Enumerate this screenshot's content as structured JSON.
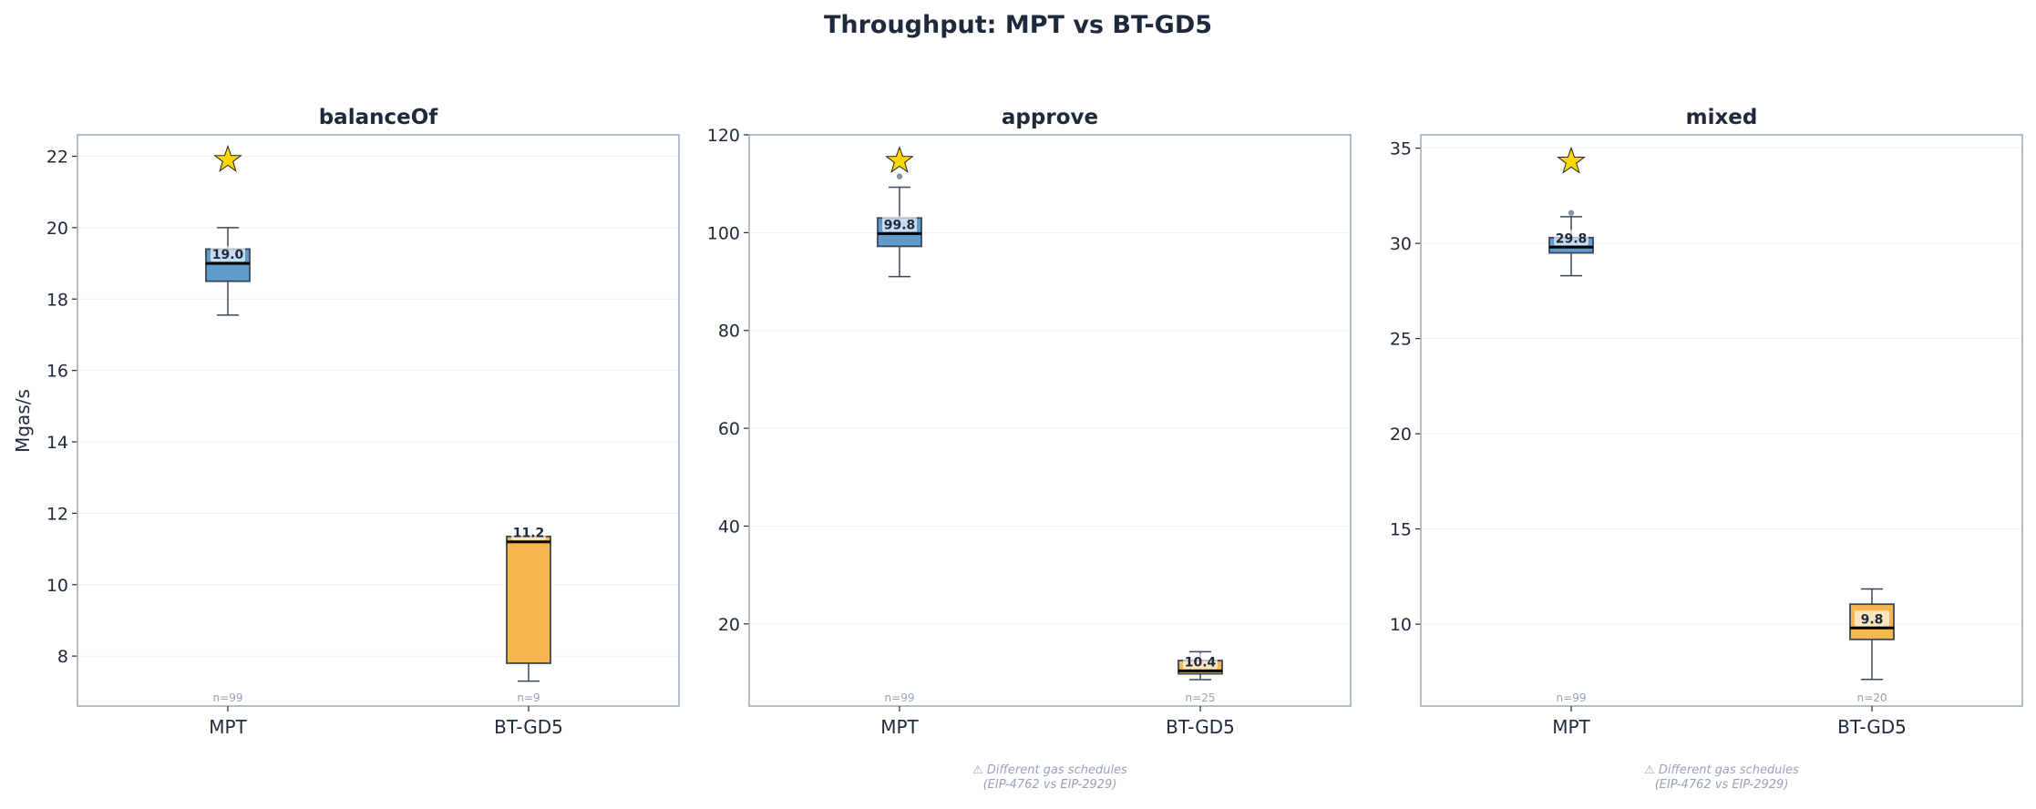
{
  "chart_data": {
    "type": "box",
    "title": "Throughput: MPT vs BT-GD5",
    "ylabel": "Mgas/s",
    "grid": "y",
    "colors": {
      "MPT": "#5f9ccb",
      "BT-GD5": "#f6b84e",
      "edge": "#3b4656",
      "star": "#ffd700",
      "text": "#1e293b",
      "spine": "#a0aec0",
      "muted": "#94a3b8",
      "outlier": "#8a94a6"
    },
    "marker_icon": "star-icon",
    "panels": [
      {
        "title": "balanceOf",
        "ylim": [
          6.6,
          22.6
        ],
        "yticks": [
          8,
          10,
          12,
          14,
          16,
          18,
          20,
          22
        ],
        "categories": [
          "MPT",
          "BT-GD5"
        ],
        "boxes": [
          {
            "whislo": 17.55,
            "q1": 18.5,
            "med": 19.0,
            "q3": 19.4,
            "whishi": 20.0,
            "median_label": "19.0",
            "n_label": "n=99",
            "outliers": [],
            "star": 21.9
          },
          {
            "whislo": 7.3,
            "q1": 7.8,
            "med": 11.2,
            "q3": 11.35,
            "whishi": 11.35,
            "median_label": "11.2",
            "n_label": "n=9",
            "outliers": []
          }
        ],
        "footnote": []
      },
      {
        "title": "approve",
        "ylim": [
          3.2,
          120
        ],
        "yticks": [
          20,
          40,
          60,
          80,
          100,
          120
        ],
        "categories": [
          "MPT",
          "BT-GD5"
        ],
        "boxes": [
          {
            "whislo": 91.0,
            "q1": 97.2,
            "med": 99.8,
            "q3": 103.0,
            "whishi": 109.3,
            "median_label": "99.8",
            "n_label": "n=99",
            "outliers": [
              111.5
            ],
            "star": 114.7
          },
          {
            "whislo": 8.6,
            "q1": 9.8,
            "med": 10.4,
            "q3": 12.5,
            "whishi": 14.3,
            "median_label": "10.4",
            "n_label": "n=25",
            "outliers": []
          }
        ],
        "footnote": [
          "⚠ Different gas schedules",
          "(EIP-4762 vs EIP-2929)"
        ]
      },
      {
        "title": "mixed",
        "ylim": [
          5.7,
          35.7
        ],
        "yticks": [
          10,
          15,
          20,
          25,
          30,
          35
        ],
        "categories": [
          "MPT",
          "BT-GD5"
        ],
        "boxes": [
          {
            "whislo": 28.3,
            "q1": 29.5,
            "med": 29.8,
            "q3": 30.3,
            "whishi": 31.4,
            "median_label": "29.8",
            "n_label": "n=99",
            "outliers": [
              31.6
            ],
            "star": 34.3
          },
          {
            "whislo": 7.1,
            "q1": 9.2,
            "med": 9.8,
            "q3": 11.05,
            "whishi": 11.85,
            "median_label": "9.8",
            "n_label": "n=20",
            "outliers": []
          }
        ],
        "footnote": [
          "⚠ Different gas schedules",
          "(EIP-4762 vs EIP-2929)"
        ]
      }
    ]
  }
}
